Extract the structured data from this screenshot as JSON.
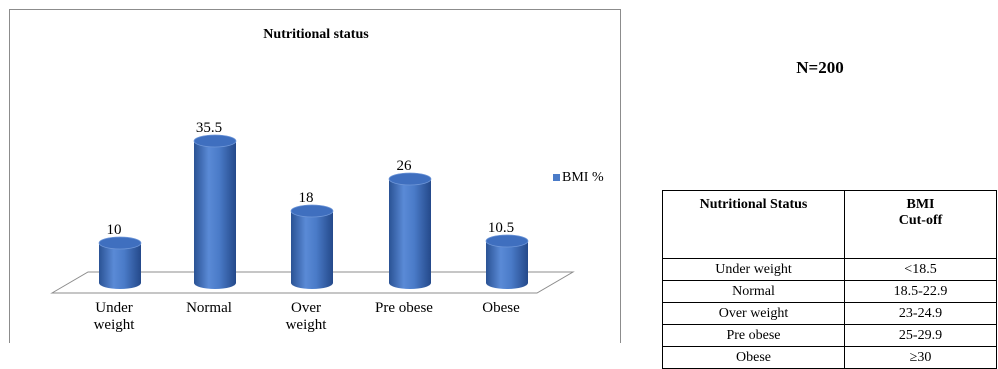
{
  "chart_data": {
    "type": "bar",
    "title": "Nutritional status",
    "categories": [
      "Under weight",
      "Normal",
      "Over weight",
      "Pre obese",
      "Obese"
    ],
    "category_lines": [
      [
        "Under",
        "weight"
      ],
      [
        "Normal"
      ],
      [
        "Over",
        "weight"
      ],
      [
        "Pre obese"
      ],
      [
        "Obese"
      ]
    ],
    "series": [
      {
        "name": "BMI %",
        "values": [
          10,
          35.5,
          18,
          26,
          10.5
        ]
      }
    ],
    "data_labels": [
      "10",
      "35.5",
      "18",
      "26",
      "10.5"
    ],
    "ylim": [
      0,
      40
    ],
    "xlabel": "",
    "ylabel": "",
    "grid": false,
    "legend": "right",
    "style": "3d-cylinder",
    "colors": {
      "bar": "#4a7bc8",
      "bar_dark": "#2a5294",
      "bar_top": "#3f6fbf"
    }
  },
  "sample_size": "N=200",
  "reference_table": {
    "headers": [
      "Nutritional Status",
      "BMI",
      "Cut-off"
    ],
    "rows": [
      [
        "Under weight",
        "<18.5"
      ],
      [
        "Normal",
        "18.5-22.9"
      ],
      [
        "Over weight",
        "23-24.9"
      ],
      [
        "Pre obese",
        "25-29.9"
      ],
      [
        "Obese",
        "≥30"
      ]
    ]
  }
}
